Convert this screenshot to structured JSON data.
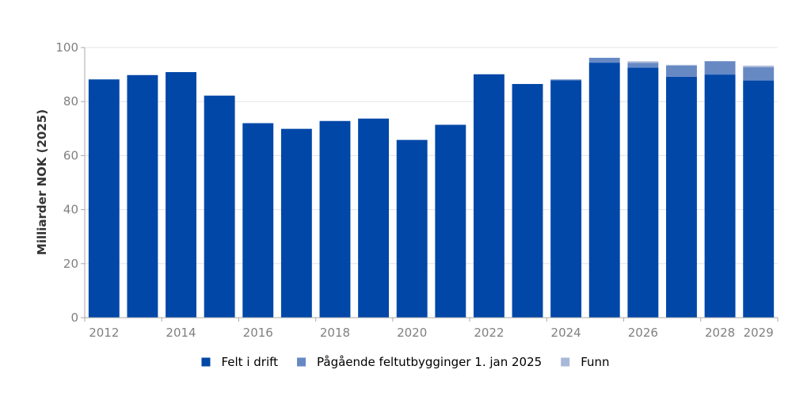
{
  "chart_data": {
    "type": "bar",
    "stacked": true,
    "ylabel": "Milliarder NOK (2025)",
    "ylim": [
      0,
      100
    ],
    "yticks": [
      0,
      20,
      40,
      60,
      80,
      100
    ],
    "grid": true,
    "legend_position": "bottom-center",
    "categories": [
      "2012",
      "2013",
      "2014",
      "2015",
      "2016",
      "2017",
      "2018",
      "2019",
      "2020",
      "2021",
      "2022",
      "2023",
      "2024",
      "2025",
      "2026",
      "2027",
      "2028",
      "2029"
    ],
    "x_tick_labels": [
      "2012",
      "2014",
      "2016",
      "2018",
      "2020",
      "2022",
      "2024",
      "2026",
      "2028",
      "2029"
    ],
    "series": [
      {
        "name": "Felt i drift",
        "color": "#0047a8",
        "values": [
          88.2,
          89.8,
          90.9,
          82.2,
          72.0,
          69.9,
          72.8,
          73.7,
          65.8,
          71.4,
          90.1,
          86.5,
          87.9,
          94.4,
          92.6,
          89.2,
          90.0,
          87.8
        ]
      },
      {
        "name": "Pågående feltutbygginger 1. jan 2025",
        "color": "#6689c4",
        "values": [
          0,
          0,
          0,
          0,
          0,
          0,
          0,
          0,
          0,
          0,
          0,
          0,
          0.3,
          1.8,
          1.7,
          4.1,
          4.9,
          4.9
        ]
      },
      {
        "name": "Funn",
        "color": "#a8b8d8",
        "values": [
          0,
          0,
          0,
          0,
          0,
          0,
          0,
          0,
          0,
          0,
          0,
          0,
          0,
          0,
          0.6,
          0.3,
          0.1,
          0.6
        ]
      }
    ]
  },
  "colors": {
    "axis": "#aaaaaa",
    "grid": "#e3e3e3",
    "tick_text": "#808080"
  }
}
